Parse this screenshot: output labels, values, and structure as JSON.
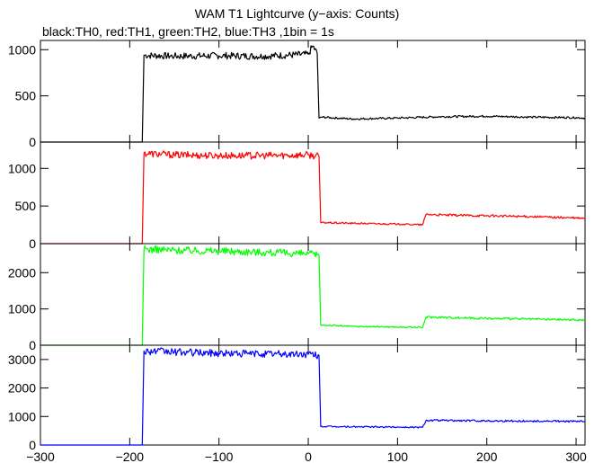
{
  "title": "WAM T1 Lightcurve (y−axis: Counts)",
  "subtitle": "black:TH0, red:TH1, green:TH2, blue:TH3 ,1bin = 1s",
  "chart_data": {
    "type": "line",
    "title": "WAM T1 Lightcurve (y−axis: Counts)",
    "subtitle": "black:TH0, red:TH1, green:TH2, blue:TH3 ,1bin = 1s",
    "xlim": [
      -300,
      310
    ],
    "xticks": [
      -300,
      -200,
      -100,
      0,
      100,
      200,
      300
    ],
    "xtick_labels": [
      "−300",
      "−200",
      "−100",
      "0",
      "100",
      "200",
      "300"
    ],
    "grid": false,
    "panels": [
      {
        "name": "TH0",
        "color": "#000000",
        "ylim": [
          0,
          1100
        ],
        "yticks": [
          0,
          500,
          1000
        ],
        "x": [
          -300,
          -186,
          -184,
          -150,
          -100,
          -50,
          0,
          5,
          10,
          12,
          14,
          50,
          100,
          150,
          200,
          250,
          300,
          310
        ],
        "values": [
          0,
          0,
          940,
          930,
          935,
          930,
          950,
          1040,
          960,
          260,
          270,
          250,
          260,
          275,
          280,
          270,
          265,
          260
        ]
      },
      {
        "name": "TH1",
        "color": "#ff0000",
        "ylim": [
          0,
          1350
        ],
        "yticks": [
          0,
          500,
          1000
        ],
        "x": [
          -300,
          -186,
          -184,
          -150,
          -100,
          -50,
          0,
          12,
          14,
          50,
          100,
          128,
          132,
          150,
          200,
          250,
          300,
          310
        ],
        "values": [
          0,
          0,
          1200,
          1180,
          1170,
          1170,
          1180,
          1160,
          280,
          270,
          260,
          250,
          390,
          380,
          370,
          360,
          340,
          335
        ]
      },
      {
        "name": "TH2",
        "color": "#00ff00",
        "ylim": [
          0,
          2800
        ],
        "yticks": [
          0,
          1000,
          2000
        ],
        "x": [
          -300,
          -186,
          -184,
          -150,
          -100,
          -50,
          0,
          12,
          14,
          50,
          100,
          128,
          132,
          150,
          200,
          250,
          300,
          310
        ],
        "values": [
          0,
          0,
          2650,
          2620,
          2600,
          2560,
          2520,
          2480,
          560,
          520,
          500,
          490,
          780,
          770,
          740,
          720,
          700,
          690
        ]
      },
      {
        "name": "TH3",
        "color": "#0000ff",
        "ylim": [
          0,
          3500
        ],
        "yticks": [
          0,
          1000,
          2000,
          3000
        ],
        "x": [
          -300,
          -186,
          -184,
          -150,
          -100,
          -50,
          0,
          12,
          14,
          50,
          100,
          128,
          132,
          150,
          200,
          250,
          300,
          310
        ],
        "values": [
          0,
          0,
          3300,
          3260,
          3220,
          3200,
          3180,
          3150,
          650,
          640,
          630,
          620,
          870,
          860,
          850,
          840,
          830,
          830
        ]
      }
    ]
  }
}
